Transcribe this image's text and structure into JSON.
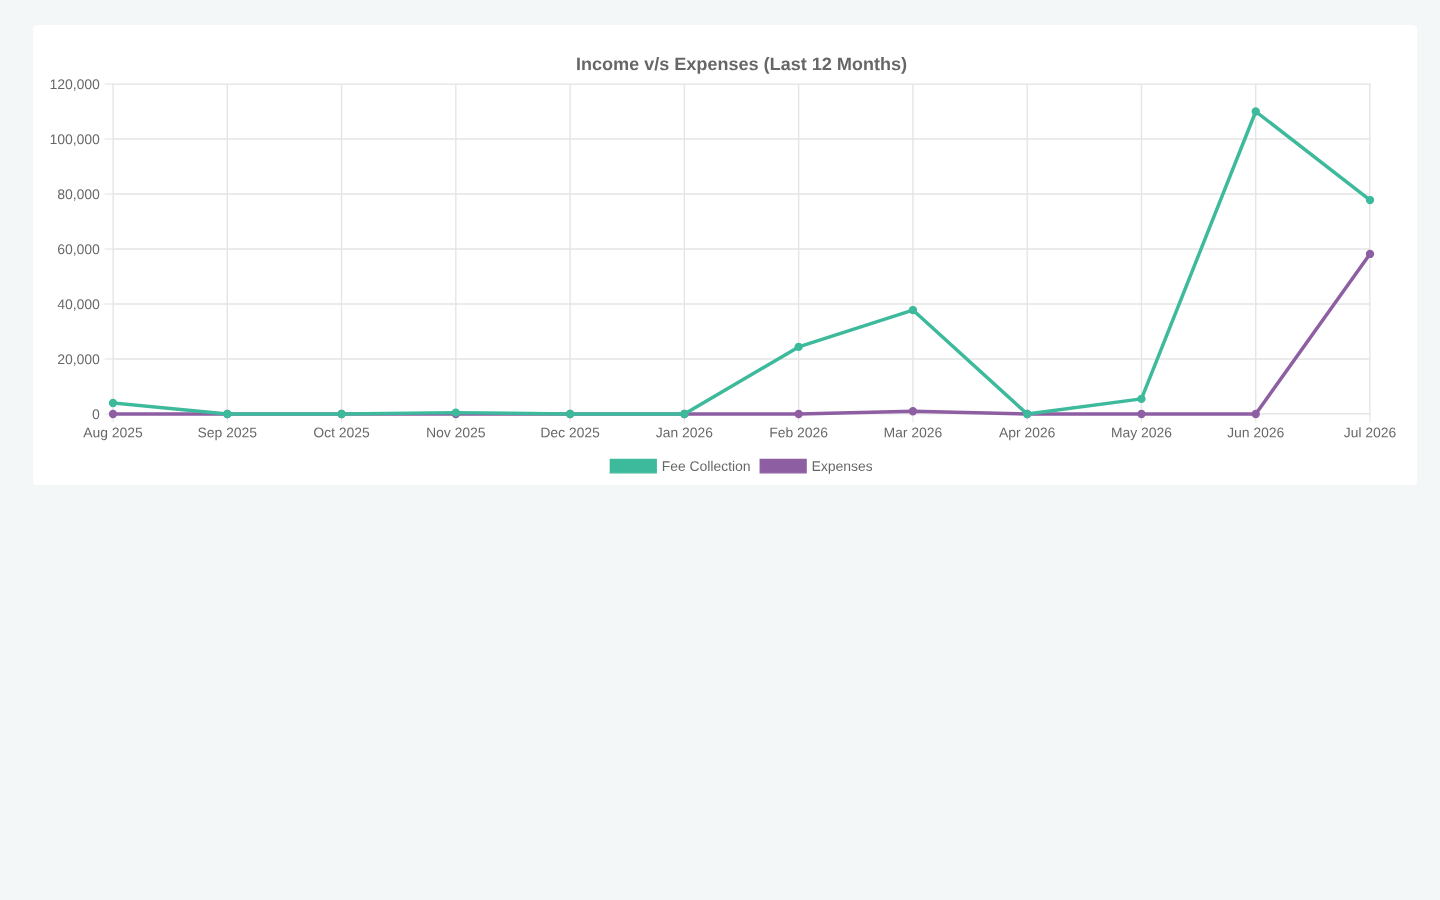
{
  "chart_data": {
    "type": "line",
    "title": "Income v/s Expenses (Last 12 Months)",
    "categories": [
      "Aug 2025",
      "Sep 2025",
      "Oct 2025",
      "Nov 2025",
      "Dec 2025",
      "Jan 2026",
      "Feb 2026",
      "Mar 2026",
      "Apr 2026",
      "May 2026",
      "Jun 2026",
      "Jul 2026"
    ],
    "series": [
      {
        "name": "Fee Collection",
        "color": "#3dba9c",
        "values": [
          4000,
          0,
          0,
          500,
          0,
          0,
          24400,
          37800,
          0,
          5500,
          110000,
          77800
        ]
      },
      {
        "name": "Expenses",
        "color": "#8e5ea2",
        "values": [
          0,
          0,
          0,
          0,
          0,
          0,
          0,
          1000,
          0,
          0,
          0,
          58200
        ]
      }
    ],
    "ylim": [
      0,
      120000
    ],
    "yticks": [
      {
        "value": 0,
        "label": "0"
      },
      {
        "value": 20000,
        "label": "20,000"
      },
      {
        "value": 40000,
        "label": "40,000"
      },
      {
        "value": 60000,
        "label": "60,000"
      },
      {
        "value": 80000,
        "label": "80,000"
      },
      {
        "value": 100000,
        "label": "100,000"
      },
      {
        "value": 120000,
        "label": "120,000"
      }
    ],
    "grid": true,
    "legend": "bottom",
    "marker": "circle",
    "line_style": "solid"
  }
}
